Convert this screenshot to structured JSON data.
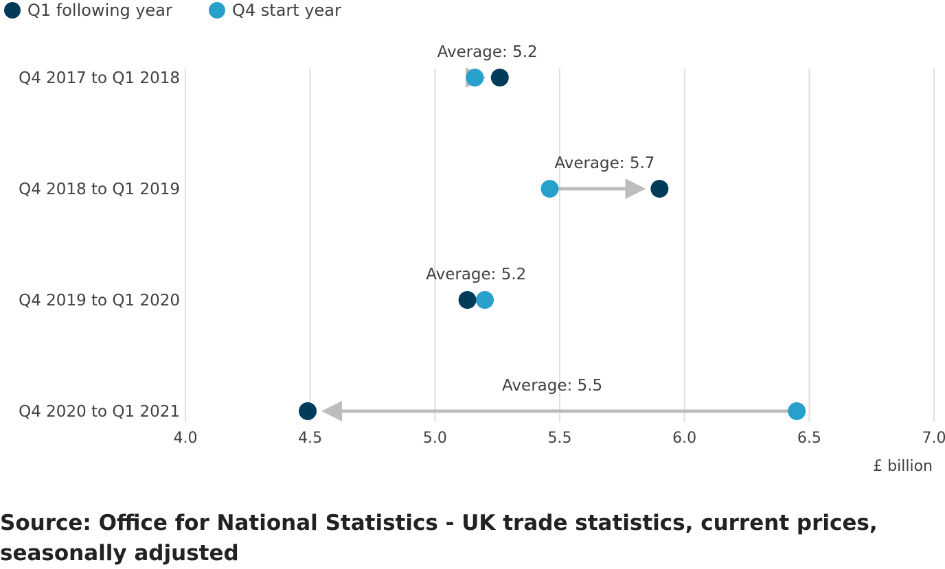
{
  "chart_data": {
    "type": "dumbbell",
    "legend_position": "top-left",
    "legend": [
      {
        "name": "Q1 following year",
        "color": "#003c57"
      },
      {
        "name": "Q4 start year",
        "color": "#27a0cc"
      }
    ],
    "xlim": [
      4.0,
      7.0
    ],
    "x_ticks": [
      "4.0",
      "4.5",
      "5.0",
      "5.5",
      "6.0",
      "6.5",
      "7.0"
    ],
    "x_unit_label": "£ billion",
    "grid": "vertical",
    "categories": [
      "Q4 2017 to Q1 2018",
      "Q4 2018 to Q1 2019",
      "Q4 2019 to Q1 2020",
      "Q4 2020 to Q1 2021"
    ],
    "series": [
      {
        "name": "Q4 start year",
        "values": [
          5.16,
          5.46,
          5.2,
          6.45
        ]
      },
      {
        "name": "Q1 following year",
        "values": [
          5.26,
          5.9,
          5.13,
          4.49
        ]
      }
    ],
    "annotations": [
      "Average: 5.2",
      "Average: 5.7",
      "Average: 5.2",
      "Average: 5.5"
    ]
  },
  "source_note": "Source: Office for National Statistics - UK trade statistics, current prices, seasonally adjusted"
}
